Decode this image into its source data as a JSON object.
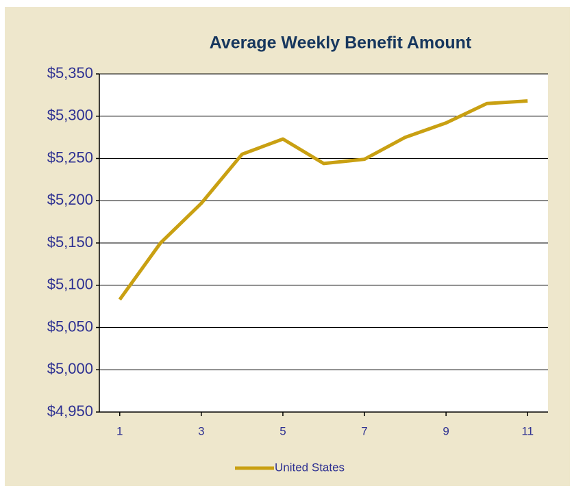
{
  "chart_data": {
    "type": "line",
    "title": "Average Weekly Benefit Amount",
    "x": [
      1,
      2,
      3,
      4,
      5,
      6,
      7,
      8,
      9,
      10,
      11
    ],
    "series": [
      {
        "name": "United States",
        "color": "#c9a012",
        "values": [
          5083,
          5150,
          5197,
          5255,
          5273,
          5244,
          5249,
          5275,
          5292,
          5315,
          5318
        ]
      }
    ],
    "xlim": [
      0.5,
      11.5
    ],
    "xticks": [
      1,
      3,
      5,
      7,
      9,
      11
    ],
    "ylim": [
      4950,
      5350
    ],
    "yticks": [
      {
        "value": 4950,
        "label": "$4,950"
      },
      {
        "value": 5000,
        "label": "$5,000"
      },
      {
        "value": 5050,
        "label": "$5,050"
      },
      {
        "value": 5100,
        "label": "$5,100"
      },
      {
        "value": 5150,
        "label": "$5,150"
      },
      {
        "value": 5200,
        "label": "$5,200"
      },
      {
        "value": 5250,
        "label": "$5,250"
      },
      {
        "value": 5300,
        "label": "$5,300"
      },
      {
        "value": 5350,
        "label": "$5,350"
      }
    ],
    "grid": true,
    "legend": "bottom"
  }
}
